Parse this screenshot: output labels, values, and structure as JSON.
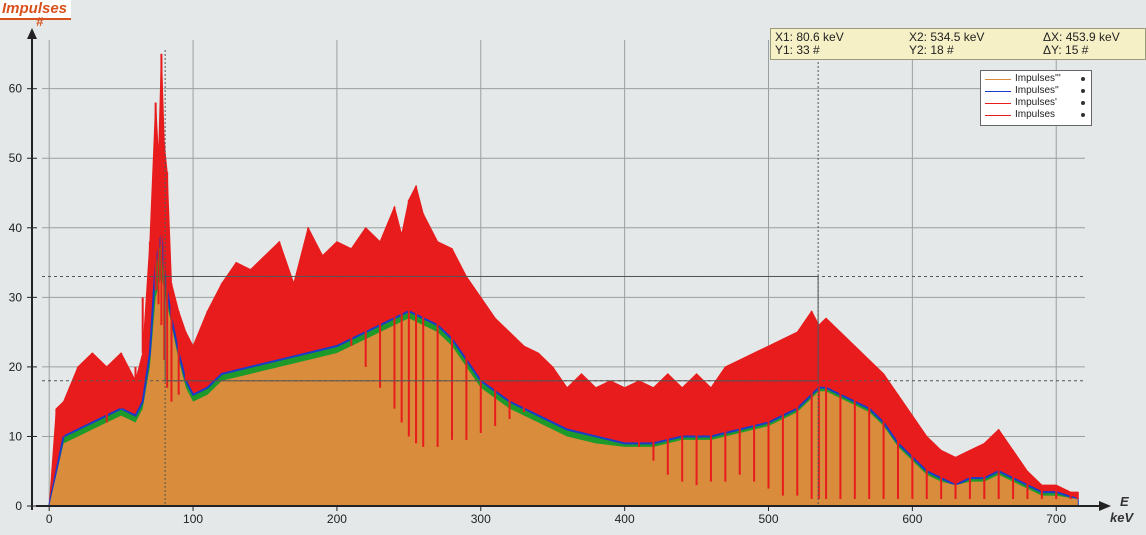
{
  "window": {
    "title": "Impulses"
  },
  "readout": {
    "x1": "X1: 80.6 keV",
    "y1": "Y1: 33 #",
    "x2": "X2: 534.5 keV",
    "y2": "Y2: 18 #",
    "dx": "ΔX: 453.9 keV",
    "dy": "ΔY: 15 #"
  },
  "colors": {
    "background": "#e4e8e8",
    "fill_orange": "#d98c3c",
    "raw_red": "#e81c1c",
    "smooth_blue": "#1a3cc8",
    "smooth_green": "#1e9a2a",
    "grid": "#9aa0a0",
    "cursor": "#555555",
    "axis": "#222222"
  },
  "chart_data": {
    "type": "area",
    "title": "Impulses",
    "ylabel": "#",
    "xlabel": "E",
    "xunit": "keV",
    "xlim": [
      -5,
      720
    ],
    "ylim": [
      0,
      67
    ],
    "xticks": [
      "0",
      "100",
      "200",
      "300",
      "400",
      "500",
      "600",
      "700"
    ],
    "yticks": [
      "0",
      "10",
      "20",
      "30",
      "40",
      "50",
      "60"
    ],
    "grid": true,
    "legend": {
      "position": "top-right",
      "entries": [
        "Impulses'''",
        "Impulses''",
        "Impulses'",
        "Impulses"
      ]
    },
    "cursors": [
      {
        "label": "X1",
        "x": 80.6,
        "y": 33
      },
      {
        "label": "X2",
        "x": 534.5,
        "y": 18
      }
    ],
    "series": [
      {
        "name": "Impulses",
        "color": "#e81c1c",
        "x": [
          0,
          5,
          10,
          20,
          30,
          40,
          50,
          60,
          65,
          70,
          74,
          76,
          78,
          80,
          82,
          85,
          90,
          95,
          100,
          110,
          120,
          130,
          140,
          150,
          160,
          170,
          180,
          190,
          200,
          210,
          220,
          230,
          240,
          245,
          250,
          255,
          260,
          270,
          280,
          290,
          300,
          310,
          320,
          330,
          340,
          350,
          360,
          370,
          380,
          390,
          400,
          410,
          420,
          430,
          440,
          450,
          460,
          470,
          480,
          490,
          500,
          510,
          520,
          530,
          535,
          540,
          550,
          560,
          570,
          580,
          590,
          600,
          610,
          620,
          630,
          640,
          650,
          660,
          670,
          680,
          690,
          700,
          710,
          715
        ],
        "values": [
          0,
          14,
          15,
          20,
          22,
          20,
          22,
          18,
          22,
          38,
          58,
          50,
          65,
          52,
          48,
          32,
          28,
          25,
          23,
          28,
          32,
          35,
          34,
          36,
          38,
          32,
          40,
          36,
          38,
          37,
          40,
          38,
          43,
          39,
          44,
          46,
          42,
          38,
          37,
          33,
          30,
          27,
          25,
          23,
          22,
          20,
          17,
          19,
          17,
          18,
          17,
          18,
          17,
          19,
          17,
          19,
          17,
          20,
          21,
          22,
          23,
          24,
          25,
          28,
          26,
          27,
          25,
          23,
          21,
          19,
          16,
          13,
          10,
          8,
          7,
          8,
          9,
          11,
          8,
          5,
          3,
          3,
          2,
          2
        ]
      },
      {
        "name": "Impulses'",
        "color": "#e81c1c",
        "x": [
          0,
          5,
          10,
          20,
          30,
          40,
          50,
          60,
          65,
          70,
          74,
          76,
          78,
          80,
          82,
          85,
          90,
          95,
          100,
          110,
          120,
          130,
          140,
          150,
          160,
          170,
          180,
          190,
          200,
          210,
          220,
          230,
          240,
          245,
          250,
          255,
          260,
          270,
          280,
          290,
          300,
          310,
          320,
          330,
          340,
          350,
          360,
          370,
          380,
          390,
          400,
          410,
          420,
          430,
          440,
          450,
          460,
          470,
          480,
          490,
          500,
          510,
          520,
          530,
          535,
          540,
          550,
          560,
          570,
          580,
          590,
          600,
          610,
          620,
          630,
          640,
          650,
          660,
          670,
          680,
          690,
          700,
          710,
          715
        ],
        "values": [
          0,
          11,
          12,
          16,
          18,
          17,
          18,
          16,
          18,
          30,
          38,
          36,
          42,
          36,
          33,
          24,
          19,
          17,
          17,
          20,
          22,
          23,
          23,
          24,
          25,
          25,
          26,
          26,
          26,
          27,
          30,
          32,
          34,
          33,
          34,
          33,
          32,
          31,
          29,
          26,
          23,
          20,
          18,
          17,
          15,
          14,
          12,
          12,
          11,
          11,
          10,
          11,
          11,
          11,
          11,
          12,
          12,
          13,
          14,
          15,
          16,
          17,
          18,
          19,
          19,
          18,
          17,
          16,
          14,
          11,
          8,
          6,
          5,
          4,
          4,
          5,
          5,
          6,
          5,
          3,
          2,
          2,
          1,
          1
        ]
      },
      {
        "name": "Impulses''",
        "color": "#1a3cc8",
        "x": [
          0,
          10,
          20,
          40,
          50,
          60,
          65,
          70,
          74,
          78,
          80,
          82,
          85,
          90,
          95,
          100,
          110,
          120,
          140,
          160,
          180,
          200,
          210,
          220,
          230,
          240,
          250,
          260,
          270,
          280,
          290,
          300,
          320,
          340,
          360,
          380,
          400,
          420,
          440,
          460,
          480,
          500,
          510,
          520,
          530,
          535,
          540,
          550,
          560,
          570,
          580,
          590,
          600,
          610,
          620,
          630,
          640,
          650,
          660,
          670,
          680,
          690,
          700,
          715
        ],
        "values": [
          0,
          10,
          11,
          13,
          14,
          13,
          15,
          22,
          35,
          39,
          34,
          31,
          27,
          22,
          18,
          16,
          17,
          19,
          20,
          21,
          22,
          23,
          24,
          25,
          26,
          27,
          28,
          27,
          26,
          24,
          21,
          18,
          15,
          13,
          11,
          10,
          9,
          9,
          10,
          10,
          11,
          12,
          13,
          14,
          16,
          17,
          17,
          16,
          15,
          14,
          12,
          9,
          7,
          5,
          4,
          3,
          4,
          4,
          5,
          4,
          3,
          2,
          2,
          1
        ]
      },
      {
        "name": "Impulses'''",
        "color": "#d98c3c",
        "x": [
          0,
          10,
          20,
          40,
          50,
          60,
          65,
          70,
          74,
          78,
          80,
          82,
          85,
          90,
          95,
          100,
          110,
          120,
          140,
          160,
          180,
          200,
          210,
          220,
          230,
          240,
          250,
          260,
          270,
          280,
          290,
          300,
          320,
          340,
          360,
          380,
          400,
          420,
          440,
          460,
          480,
          500,
          510,
          520,
          530,
          535,
          540,
          550,
          560,
          570,
          580,
          590,
          600,
          610,
          620,
          630,
          640,
          650,
          660,
          670,
          680,
          690,
          700,
          715
        ],
        "values": [
          0,
          9,
          10,
          12,
          13,
          12,
          14,
          20,
          30,
          33,
          31,
          29,
          26,
          21,
          17,
          15,
          16,
          18,
          19,
          20,
          21,
          22,
          23,
          24,
          25,
          26,
          27,
          26,
          25,
          23,
          20,
          17,
          14,
          12,
          10,
          9,
          8.5,
          8.5,
          9.5,
          9.5,
          10.5,
          11.5,
          12.5,
          13.5,
          15.5,
          16.5,
          16.5,
          15.5,
          14.5,
          13.5,
          11.5,
          8.5,
          6.5,
          4.5,
          3.5,
          3,
          3.5,
          3.5,
          4.5,
          3.5,
          2.5,
          1.5,
          1.5,
          1
        ]
      }
    ]
  }
}
